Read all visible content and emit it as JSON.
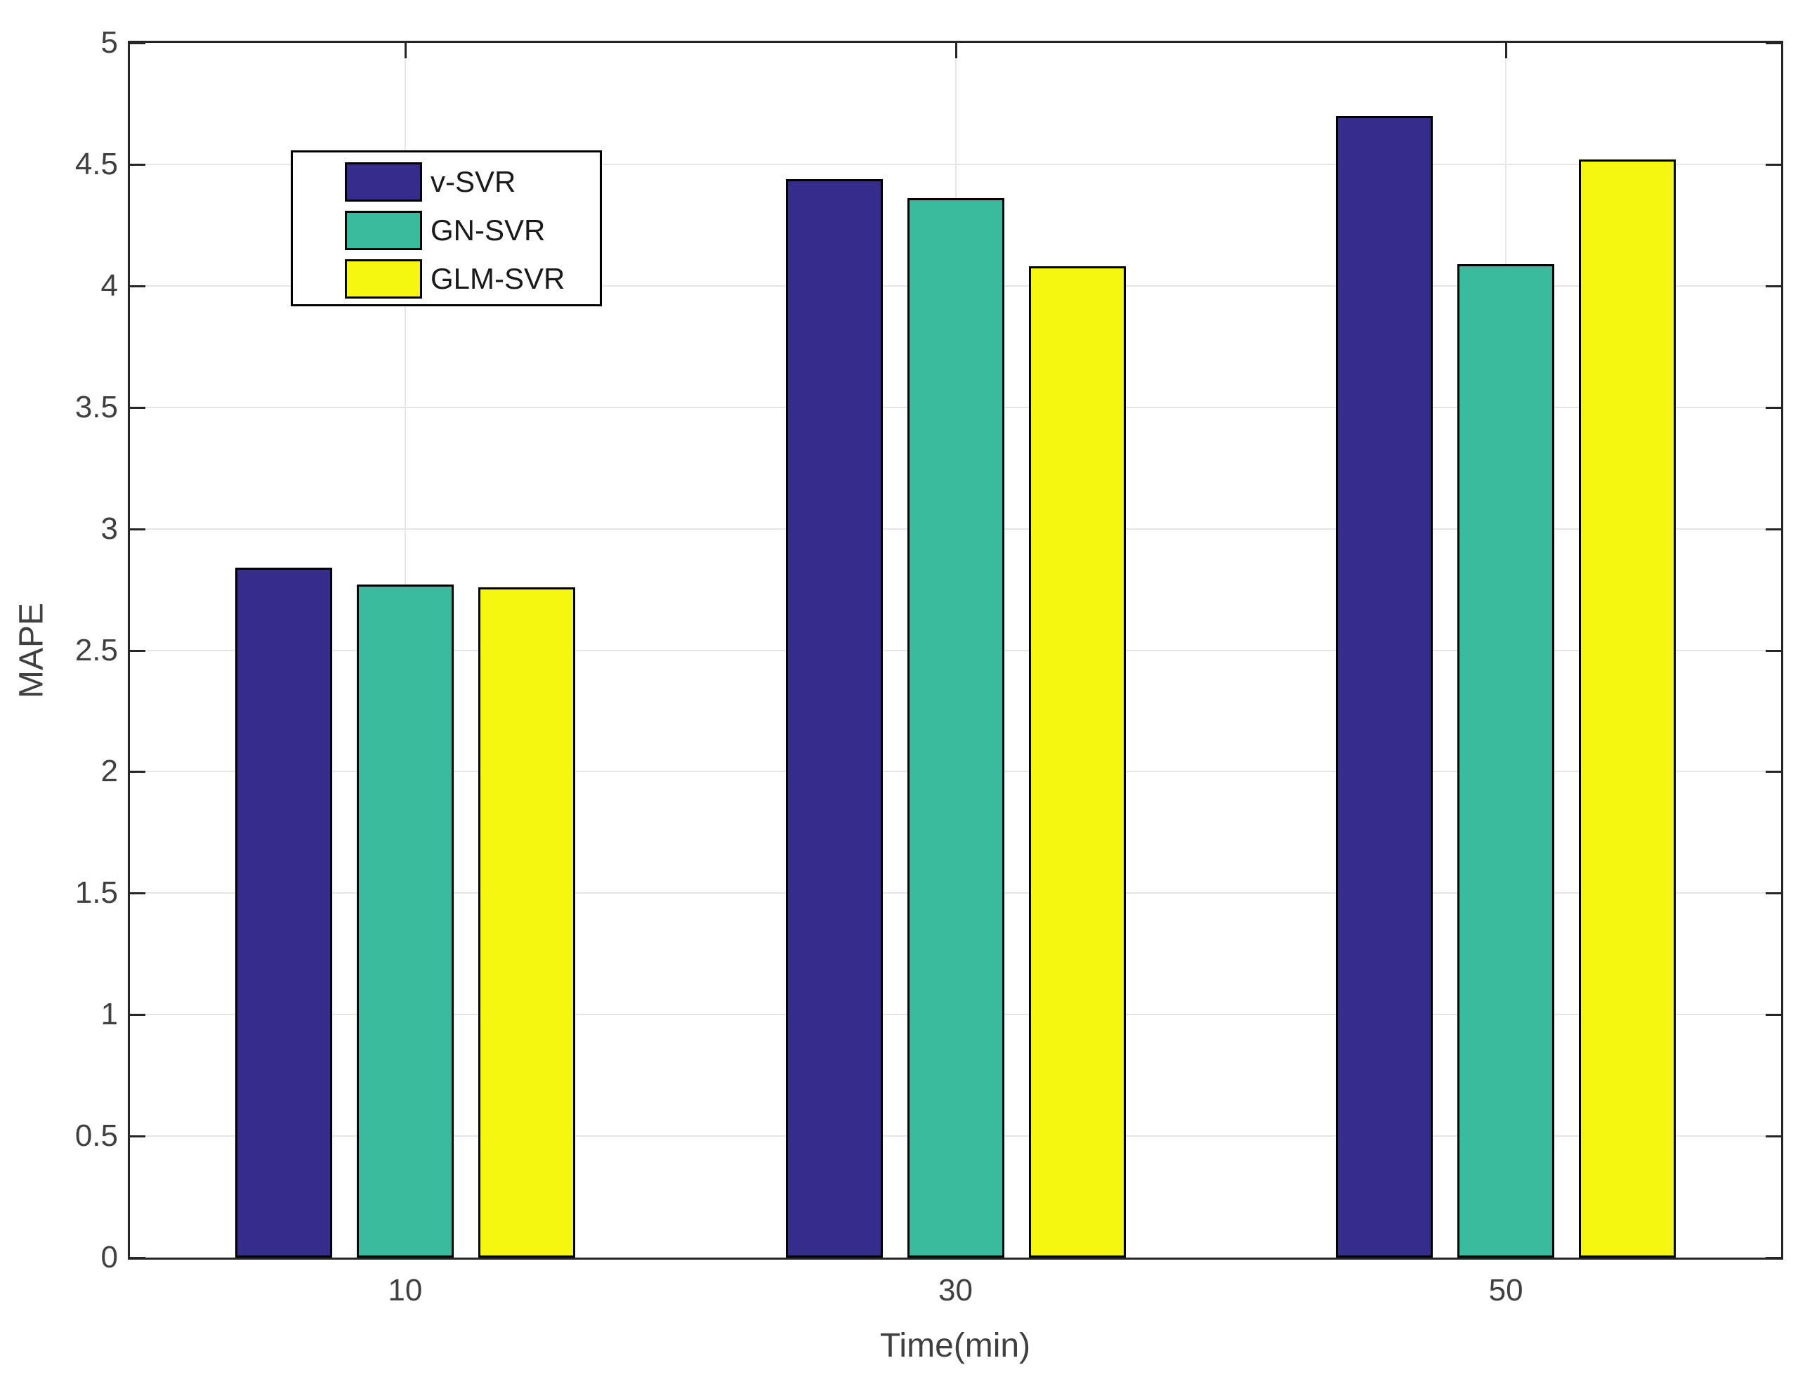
{
  "chart_data": {
    "type": "bar",
    "title": "",
    "xlabel": "Time(min)",
    "ylabel": "MAPE",
    "categories": [
      "10",
      "30",
      "50"
    ],
    "series": [
      {
        "name": "v-SVR",
        "color": "#352D89",
        "values": [
          2.84,
          4.44,
          4.7
        ]
      },
      {
        "name": "GN-SVR",
        "color": "#3ABA9C",
        "values": [
          2.77,
          4.36,
          4.09
        ]
      },
      {
        "name": "GLM-SVR",
        "color": "#F5F70E",
        "values": [
          2.76,
          4.08,
          4.52
        ]
      }
    ],
    "ylim": [
      0,
      5
    ],
    "yticks": [
      0,
      0.5,
      1,
      1.5,
      2,
      2.5,
      3,
      3.5,
      4,
      4.5,
      5
    ],
    "ytick_labels": [
      "0",
      "0.5",
      "1",
      "1.5",
      "2",
      "2.5",
      "3",
      "3.5",
      "4",
      "4.5",
      "5"
    ],
    "grid": true,
    "legend_position": "upper-left-inside",
    "colors": {
      "axis": "#262626",
      "grid": "#E6E6E6",
      "tick_text": "#404040",
      "bar_edge": "#000000",
      "background": "#FFFFFF"
    }
  }
}
